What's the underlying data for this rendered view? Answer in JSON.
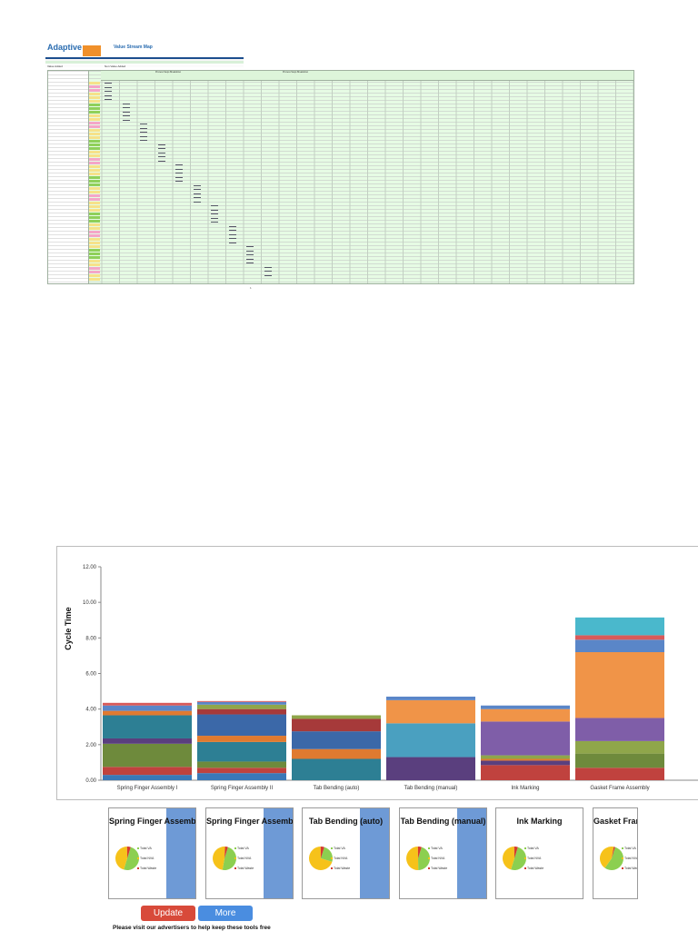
{
  "sheet": {
    "brand": "Adaptive",
    "brand_sub": "",
    "title": "Value Stream Map",
    "subtitle": "",
    "rev_label": "",
    "info": {
      "project_label": "",
      "project_value": "",
      "product_label": "",
      "product_value": "",
      "value_label": "Value Added",
      "value_value": "",
      "non_value_label": "Non Value Added",
      "non_value_value": ""
    },
    "header_group_1": "Process Steps Breakdown",
    "header_group_2": "Process Steps Breakdown",
    "page_number": "1"
  },
  "chart_data": {
    "type": "bar",
    "stacked": true,
    "categories": [
      "Spring Finger Assembly I",
      "Spring Finger Assembly II",
      "Tab Bending (auto)",
      "Tab Bending (manual)",
      "Ink Marking",
      "Gasket Frame Assembly"
    ],
    "ylabel": "Cycle Time",
    "ylim": [
      0,
      12
    ],
    "yticks": [
      "0.00",
      "2.00",
      "4.00",
      "6.00",
      "8.00",
      "10.00",
      "12.00"
    ],
    "series": [
      {
        "color": "#3a78b8",
        "values": [
          0.3,
          0.4,
          0.0,
          0.0,
          0.0,
          0.0
        ]
      },
      {
        "color": "#c0423e",
        "values": [
          0.45,
          0.3,
          0.0,
          0.0,
          0.85,
          0.7
        ]
      },
      {
        "color": "#6e8a3c",
        "values": [
          1.3,
          0.35,
          0.0,
          0.0,
          0.0,
          0.8
        ]
      },
      {
        "color": "#5a3f7e",
        "values": [
          0.3,
          0.0,
          0.0,
          1.3,
          0.25,
          0.0
        ]
      },
      {
        "color": "#2d7f94",
        "values": [
          1.3,
          1.1,
          1.2,
          0.0,
          0.0,
          0.0
        ]
      },
      {
        "color": "#e07a30",
        "values": [
          0.25,
          0.35,
          0.55,
          0.0,
          0.1,
          0.0
        ]
      },
      {
        "color": "#3b68a8",
        "values": [
          0.0,
          1.2,
          1.0,
          0.0,
          0.0,
          0.0
        ]
      },
      {
        "color": "#a63a3a",
        "values": [
          0.0,
          0.3,
          0.7,
          0.0,
          0.0,
          0.0
        ]
      },
      {
        "color": "#8fa64a",
        "values": [
          0.0,
          0.25,
          0.2,
          0.0,
          0.2,
          0.7
        ]
      },
      {
        "color": "#4aa0c0",
        "values": [
          0.0,
          0.0,
          0.0,
          1.9,
          0.0,
          0.0
        ]
      },
      {
        "color": "#7f5ea8",
        "values": [
          0.0,
          0.0,
          0.0,
          0.0,
          1.9,
          1.3
        ]
      },
      {
        "color": "#f09448",
        "values": [
          0.0,
          0.0,
          0.0,
          1.3,
          0.7,
          3.7
        ]
      },
      {
        "color": "#5a86c8",
        "values": [
          0.3,
          0.15,
          0.0,
          0.2,
          0.2,
          0.7
        ]
      },
      {
        "color": "#d85a5a",
        "values": [
          0.15,
          0.05,
          0.0,
          0.0,
          0.0,
          0.25
        ]
      },
      {
        "color": "#4ab8cc",
        "values": [
          0.0,
          0.0,
          0.0,
          0.0,
          0.0,
          1.0
        ]
      }
    ]
  },
  "cards": [
    {
      "title": "Spring Finger Assembly I",
      "legend": [
        "Total VA",
        "Total NVA",
        "Total Waste"
      ],
      "pie": [
        0.5,
        0.45,
        0.05
      ],
      "side_panel": true
    },
    {
      "title": "Spring Finger Assembly II",
      "legend": [
        "Total VA",
        "Total NVA",
        "Total Waste"
      ],
      "pie": [
        0.48,
        0.48,
        0.04
      ],
      "side_panel": true
    },
    {
      "title": "Tab Bending (auto)",
      "legend": [
        "Total VA",
        "Total NVA",
        "Total Waste"
      ],
      "pie": [
        0.25,
        0.7,
        0.05
      ],
      "side_panel": true
    },
    {
      "title": "Tab Bending (manual)",
      "legend": [
        "Total VA",
        "Total NVA",
        "Total Waste"
      ],
      "pie": [
        0.45,
        0.5,
        0.05
      ],
      "side_panel": true
    },
    {
      "title": "Ink Marking",
      "legend": [
        "Total VA",
        "Total NVA",
        "Total Waste"
      ],
      "pie": [
        0.5,
        0.45,
        0.05
      ],
      "side_panel": false
    },
    {
      "title": "Gasket Frame Assembly",
      "legend": [
        "Total VA",
        "Total NVA",
        "Total Waste"
      ],
      "pie": [
        0.55,
        0.43,
        0.02
      ],
      "side_panel": false
    }
  ],
  "pie_colors": [
    "#8ccf50",
    "#f6c21a",
    "#d43a30"
  ],
  "buttons": {
    "update": "Update",
    "more": "More"
  },
  "footer": "Please visit our advertisers to help keep these tools free"
}
